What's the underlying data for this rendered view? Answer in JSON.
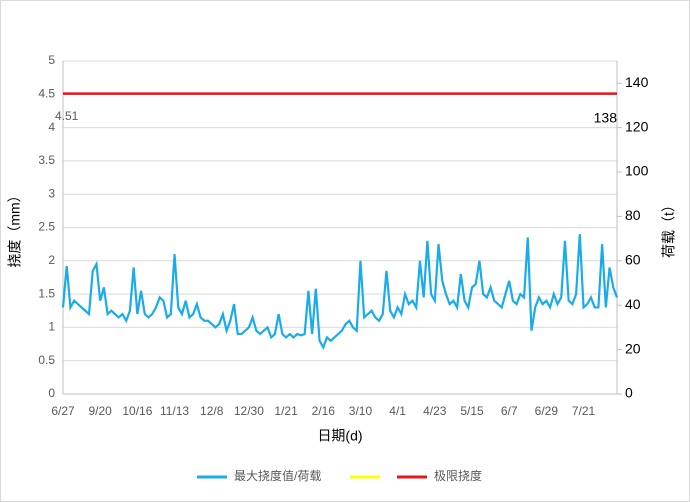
{
  "chart_data": {
    "type": "line",
    "x_label": "日期(d)",
    "y_label": "挠度（mm）",
    "y2_label": "荷载（t）",
    "categories": [
      "6/27",
      null,
      null,
      null,
      null,
      null,
      null,
      null,
      null,
      null,
      "9/20",
      null,
      null,
      null,
      null,
      null,
      null,
      null,
      null,
      null,
      "10/16",
      null,
      null,
      null,
      null,
      null,
      null,
      null,
      null,
      null,
      "11/13",
      null,
      null,
      null,
      null,
      null,
      null,
      null,
      null,
      null,
      "12/8",
      null,
      null,
      null,
      null,
      null,
      null,
      null,
      null,
      null,
      "12/30",
      null,
      null,
      null,
      null,
      null,
      null,
      null,
      null,
      null,
      "1/21",
      null,
      null,
      null,
      null,
      null,
      null,
      null,
      null,
      null,
      "2/16",
      null,
      null,
      null,
      null,
      null,
      null,
      null,
      null,
      null,
      "3/10",
      null,
      null,
      null,
      null,
      null,
      null,
      null,
      null,
      null,
      "4/1",
      null,
      null,
      null,
      null,
      null,
      null,
      null,
      null,
      null,
      "4/23",
      null,
      null,
      null,
      null,
      null,
      null,
      null,
      null,
      null,
      "5/15",
      null,
      null,
      null,
      null,
      null,
      null,
      null,
      null,
      null,
      "6/7",
      null,
      null,
      null,
      null,
      null,
      null,
      null,
      null,
      null,
      "6/29",
      null,
      null,
      null,
      null,
      null,
      null,
      null,
      null,
      null,
      "7/21",
      null,
      null,
      null,
      null,
      null,
      null,
      null,
      null,
      null
    ],
    "series": [
      {
        "name": "最大挠度值/荷载",
        "color": "#1aacea",
        "values": [
          1.3,
          1.92,
          1.3,
          1.4,
          1.35,
          1.3,
          1.25,
          1.2,
          1.85,
          1.95,
          1.4,
          1.6,
          1.2,
          1.25,
          1.2,
          1.15,
          1.2,
          1.1,
          1.25,
          1.9,
          1.2,
          1.55,
          1.2,
          1.15,
          1.2,
          1.3,
          1.45,
          1.4,
          1.15,
          1.2,
          2.1,
          1.3,
          1.2,
          1.4,
          1.15,
          1.2,
          1.35,
          1.15,
          1.1,
          1.1,
          1.05,
          1.0,
          1.05,
          1.2,
          0.95,
          1.1,
          1.35,
          0.9,
          0.9,
          0.95,
          1.0,
          1.15,
          0.95,
          0.9,
          0.95,
          1.0,
          0.85,
          0.9,
          1.2,
          0.9,
          0.85,
          0.9,
          0.85,
          0.9,
          0.88,
          0.9,
          1.55,
          0.9,
          1.58,
          0.8,
          0.7,
          0.85,
          0.8,
          0.85,
          0.9,
          0.95,
          1.05,
          1.1,
          1.0,
          0.95,
          2.0,
          1.15,
          1.2,
          1.25,
          1.15,
          1.1,
          1.2,
          1.85,
          1.25,
          1.15,
          1.3,
          1.2,
          1.5,
          1.35,
          1.4,
          1.3,
          2.0,
          1.45,
          2.3,
          1.5,
          1.4,
          2.25,
          1.7,
          1.5,
          1.35,
          1.4,
          1.3,
          1.8,
          1.4,
          1.3,
          1.6,
          1.65,
          2.0,
          1.5,
          1.45,
          1.6,
          1.4,
          1.35,
          1.3,
          1.5,
          1.7,
          1.4,
          1.35,
          1.5,
          1.45,
          2.35,
          0.95,
          1.3,
          1.45,
          1.35,
          1.4,
          1.3,
          1.5,
          1.35,
          1.45,
          2.3,
          1.4,
          1.35,
          1.5,
          2.4,
          1.3,
          1.35,
          1.45,
          1.3,
          1.3,
          2.25,
          1.3,
          1.9,
          1.6,
          1.45
        ]
      }
    ],
    "limit": {
      "name": "极限挠度",
      "color": "#e8141b",
      "value": 4.51,
      "y2_value": 138
    },
    "extra_legend_color": "#ffff00",
    "ylim": [
      0,
      5
    ],
    "yticks": [
      0,
      0.5,
      1,
      1.5,
      2,
      2.5,
      3,
      3.5,
      4,
      4.5,
      5
    ],
    "y2lim": [
      0,
      150
    ],
    "y2ticks": [
      0,
      20,
      40,
      60,
      80,
      100,
      120,
      140
    ],
    "grid": true
  }
}
